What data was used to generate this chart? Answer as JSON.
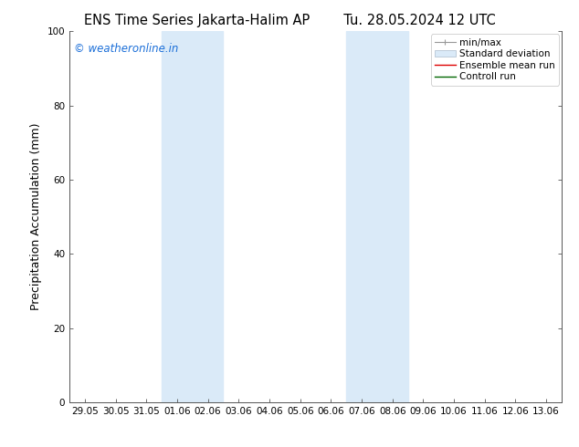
{
  "title_left": "ENS Time Series Jakarta-Halim AP",
  "title_right": "Tu. 28.05.2024 12 UTC",
  "ylabel": "Precipitation Accumulation (mm)",
  "watermark": "© weatheronline.in",
  "watermark_color": "#1a6ed8",
  "ylim": [
    0,
    100
  ],
  "yticks": [
    0,
    20,
    40,
    60,
    80,
    100
  ],
  "x_tick_labels": [
    "29.05",
    "30.05",
    "31.05",
    "01.06",
    "02.06",
    "03.06",
    "04.06",
    "05.06",
    "06.06",
    "07.06",
    "08.06",
    "09.06",
    "10.06",
    "11.06",
    "12.06",
    "13.06"
  ],
  "shade_bands": [
    {
      "xmin": 3,
      "xmax": 5,
      "color": "#daeaf8"
    },
    {
      "xmin": 9,
      "xmax": 11,
      "color": "#daeaf8"
    }
  ],
  "shade_color": "#daeaf8",
  "bg_color": "#ffffff",
  "spine_color": "#555555",
  "title_fontsize": 10.5,
  "tick_fontsize": 7.5,
  "ylabel_fontsize": 9,
  "watermark_fontsize": 8.5,
  "legend_fontsize": 7.5
}
